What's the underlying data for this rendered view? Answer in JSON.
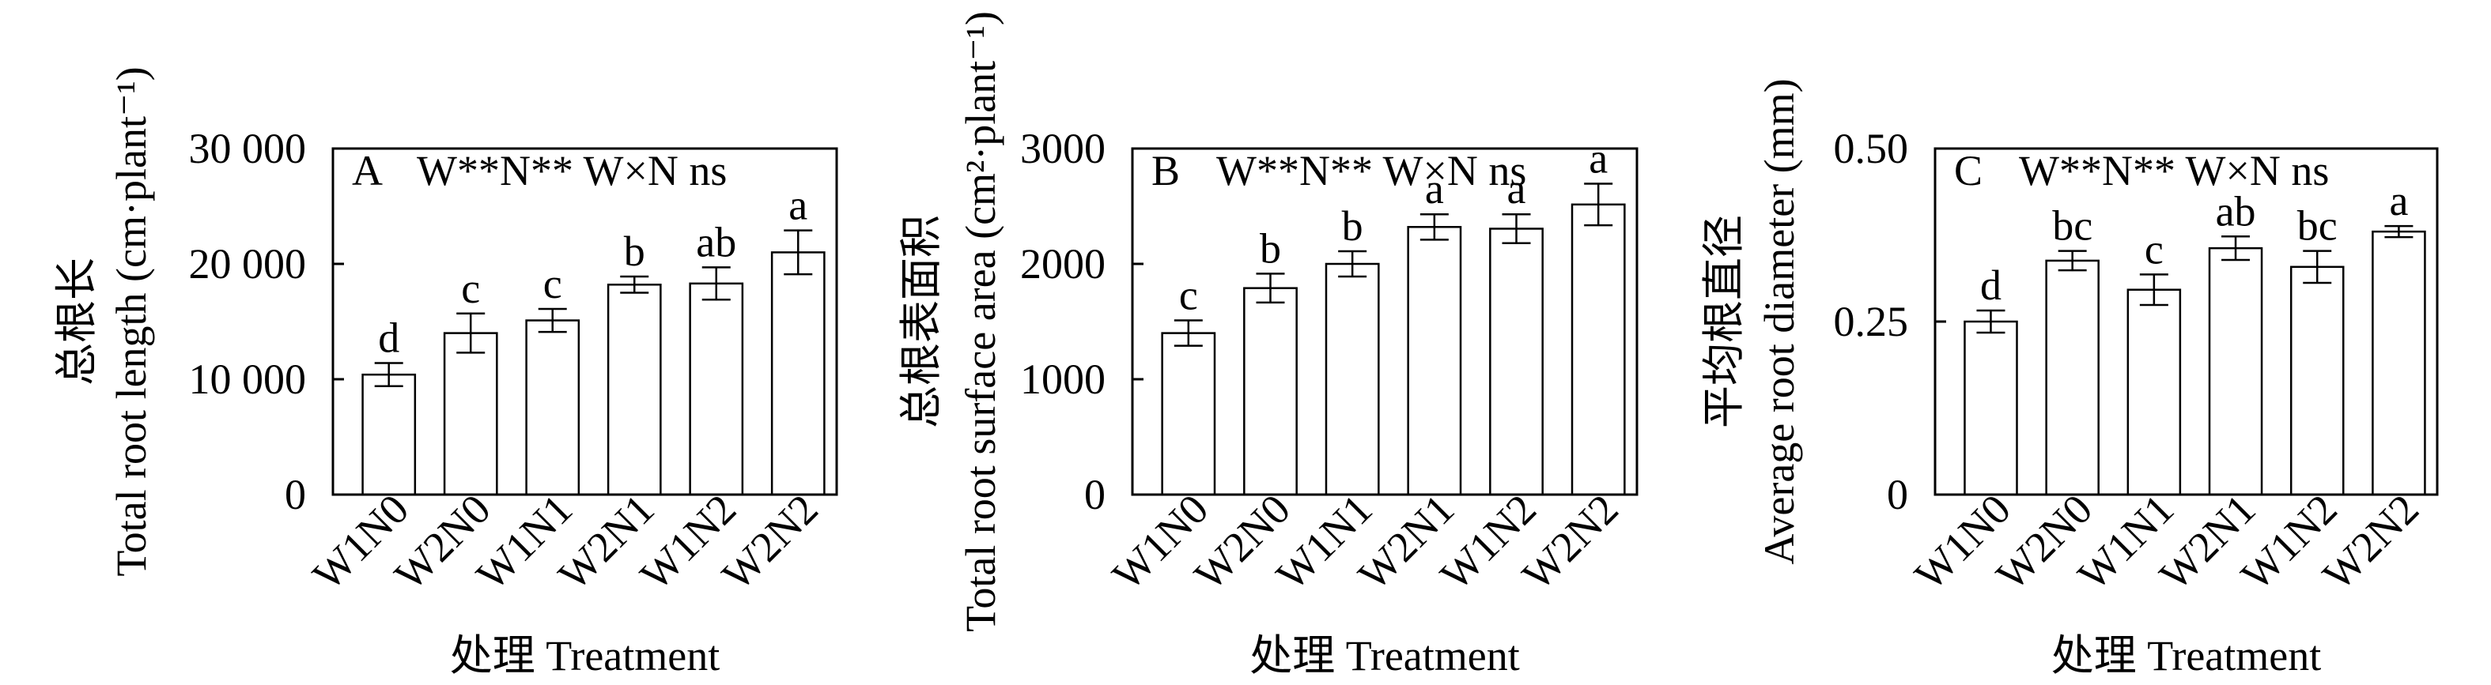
{
  "colors": {
    "bar_fill": "#ffffff",
    "bar_edge": "#000000",
    "axis": "#000000"
  },
  "chart_data": [
    {
      "type": "bar",
      "panel_label": "A",
      "annotation": "W**N** W×N ns",
      "ylabel_cn": "总根长",
      "ylabel_en": "Total root length (cm·plant⁻¹)",
      "xlabel": "处理 Treatment",
      "categories": [
        "W1N0",
        "W2N0",
        "W1N1",
        "W2N1",
        "W1N2",
        "W2N2"
      ],
      "values": [
        10400,
        14000,
        15100,
        18200,
        18300,
        21000
      ],
      "errors": [
        1000,
        1700,
        1000,
        700,
        1400,
        1900
      ],
      "letters": [
        "d",
        "c",
        "c",
        "b",
        "ab",
        "a"
      ],
      "yticks": [
        0,
        10000,
        20000,
        30000
      ],
      "ytick_labels": [
        "0",
        "10 000",
        "20 000",
        "30 000"
      ],
      "ylim": [
        0,
        30000
      ],
      "grid": false
    },
    {
      "type": "bar",
      "panel_label": "B",
      "annotation": "W**N** W×N ns",
      "ylabel_cn": "总根表面积",
      "ylabel_en": "Total root surface area (cm²·plant⁻¹)",
      "xlabel": "处理 Treatment",
      "categories": [
        "W1N0",
        "W2N0",
        "W1N1",
        "W2N1",
        "W1N2",
        "W2N2"
      ],
      "values": [
        1400,
        1790,
        2000,
        2320,
        2305,
        2515
      ],
      "errors": [
        110,
        125,
        110,
        110,
        125,
        180
      ],
      "letters": [
        "c",
        "b",
        "b",
        "a",
        "a",
        "a"
      ],
      "yticks": [
        0,
        1000,
        2000,
        3000
      ],
      "ytick_labels": [
        "0",
        "1000",
        "2000",
        "3000"
      ],
      "ylim": [
        0,
        3000
      ],
      "grid": false
    },
    {
      "type": "bar",
      "panel_label": "C",
      "annotation": "W**N** W×N ns",
      "ylabel_cn": "平均根直径",
      "ylabel_en": "Average root diameter (mm)",
      "xlabel": "处理 Treatment",
      "categories": [
        "W1N0",
        "W2N0",
        "W1N1",
        "W2N1",
        "W1N2",
        "W2N2"
      ],
      "values": [
        0.25,
        0.338,
        0.296,
        0.356,
        0.329,
        0.38
      ],
      "errors": [
        0.016,
        0.014,
        0.022,
        0.017,
        0.023,
        0.008
      ],
      "letters": [
        "d",
        "bc",
        "c",
        "ab",
        "bc",
        "a"
      ],
      "yticks": [
        0,
        0.25,
        0.5
      ],
      "ytick_labels": [
        "0",
        "0.25",
        "0.50"
      ],
      "ylim": [
        0,
        0.5
      ],
      "grid": false
    }
  ]
}
